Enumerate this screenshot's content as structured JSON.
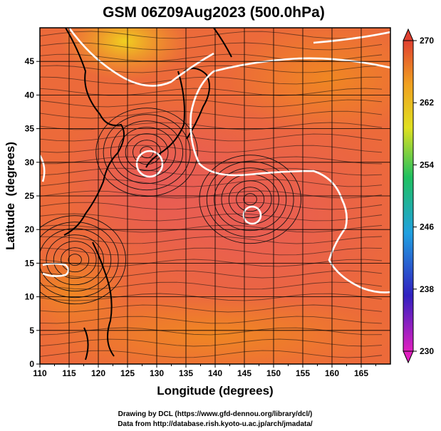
{
  "chart_data": {
    "type": "heatmap",
    "title": "GSM 06Z09Aug2023 (500.0hPa)",
    "xlabel": "Longitude (degrees)",
    "ylabel": "Latitude  (degrees)",
    "xlim": [
      110,
      170
    ],
    "ylim": [
      0,
      50
    ],
    "x_ticks": [
      110,
      115,
      120,
      125,
      130,
      135,
      140,
      145,
      150,
      155,
      160,
      165
    ],
    "y_ticks": [
      0,
      5,
      10,
      15,
      20,
      25,
      30,
      35,
      40,
      45
    ],
    "colorbar": {
      "min": 230,
      "max": 270,
      "ticks": [
        230,
        238,
        246,
        254,
        262,
        270
      ],
      "colors": [
        "#e020c0",
        "#3020c0",
        "#20a0e0",
        "#20c060",
        "#e0e020",
        "#f0a020",
        "#e04030"
      ]
    },
    "contour_label": "white contour",
    "features": [
      {
        "name": "closed-circulation-1",
        "lon": 128.3,
        "lat": 31.5
      },
      {
        "name": "closed-circulation-2",
        "lon": 146,
        "lat": 24.5
      },
      {
        "name": "closed-circulation-3",
        "lon": 116,
        "lat": 15.5
      }
    ],
    "grid": true
  },
  "credits": {
    "line1": "Drawing by DCL (https://www.gfd-dennou.org/library/dcl/)",
    "line2": "Data from http://database.rish.kyoto-u.ac.jp/arch/jmadata/"
  }
}
